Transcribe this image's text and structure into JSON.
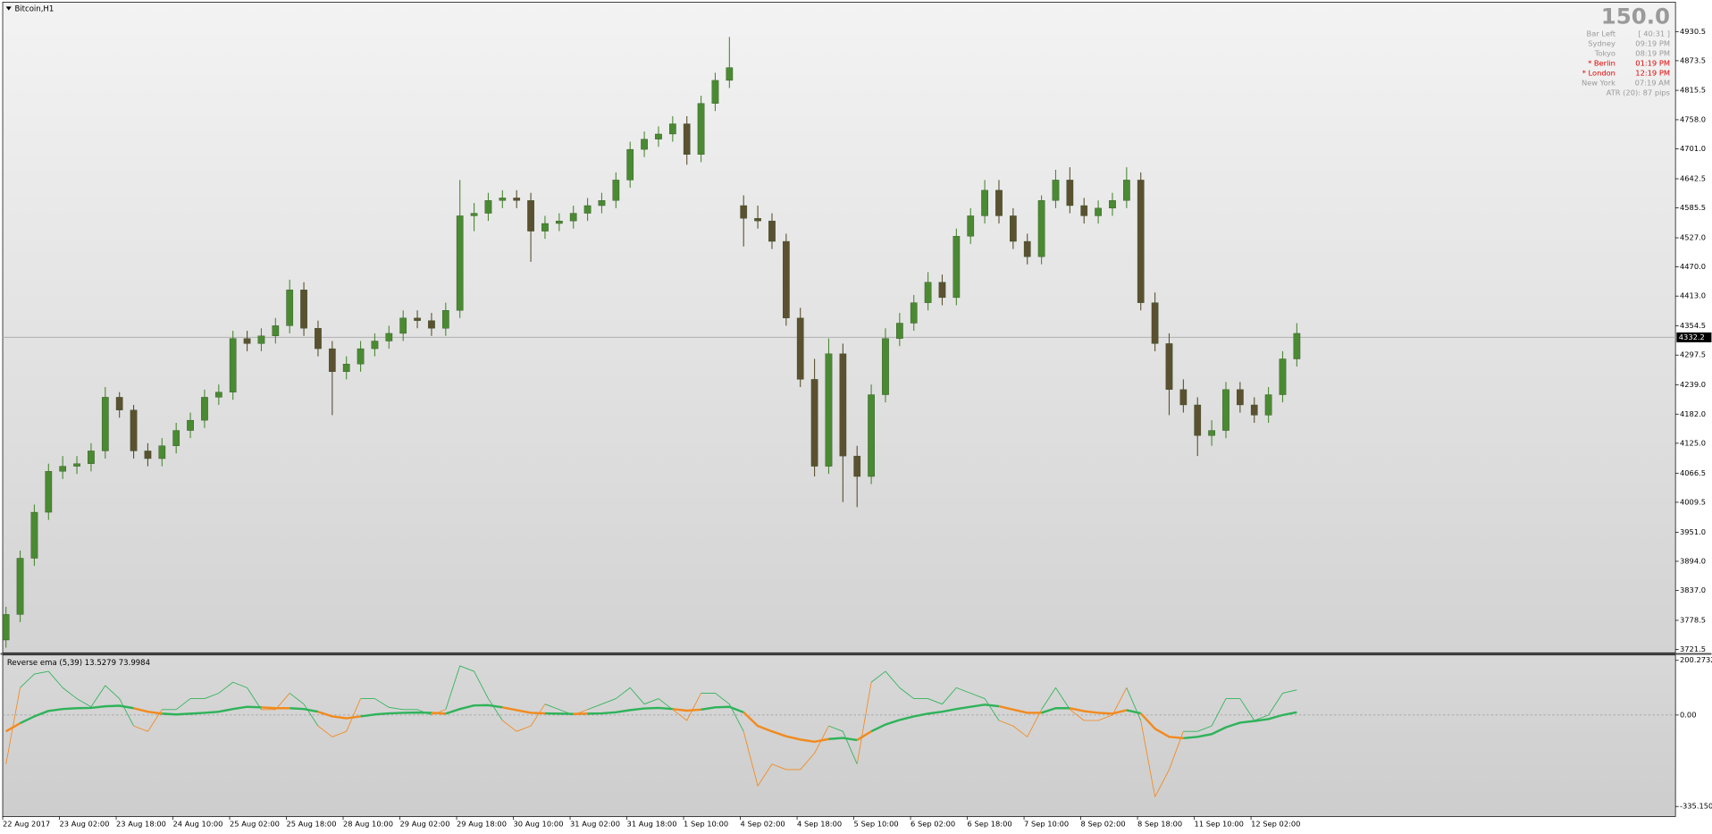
{
  "chart_data": {
    "type": "candlestick",
    "title": "Bitcoin,H1",
    "categories": [
      "22 Aug 2017",
      null,
      null,
      null,
      "23 Aug 02:00",
      null,
      null,
      null,
      "23 Aug 18:00",
      null,
      null,
      null,
      "24 Aug 10:00",
      null,
      null,
      null,
      "25 Aug 02:00",
      null,
      null,
      null,
      "25 Aug 18:00",
      null,
      null,
      null,
      "28 Aug 10:00",
      null,
      null,
      null,
      "29 Aug 02:00",
      null,
      null,
      null,
      "29 Aug 18:00",
      null,
      null,
      null,
      "30 Aug 10:00",
      null,
      null,
      null,
      "31 Aug 02:00",
      null,
      null,
      null,
      "31 Aug 18:00",
      null,
      null,
      null,
      "1 Sep 10:00",
      null,
      null,
      null,
      "4 Sep 02:00",
      null,
      null,
      null,
      "4 Sep 18:00",
      null,
      null,
      null,
      "5 Sep 10:00",
      null,
      null,
      null,
      "6 Sep 02:00",
      null,
      null,
      null,
      "6 Sep 18:00",
      null,
      null,
      null,
      "7 Sep 10:00",
      null,
      null,
      null,
      "8 Sep 02:00",
      null,
      null,
      null,
      "8 Sep 18:00",
      null,
      null,
      null,
      "11 Sep 10:00",
      null,
      null,
      null,
      "12 Sep 02:00",
      null,
      null,
      null
    ],
    "open": [
      3740,
      3790,
      3900,
      3990,
      4070,
      4080,
      4085,
      4110,
      4215,
      4190,
      4110,
      4095,
      4120,
      4150,
      4170,
      4215,
      4225,
      4330,
      4320,
      4335,
      4355,
      4425,
      4350,
      4310,
      4265,
      4280,
      4310,
      4325,
      4340,
      4370,
      4365,
      4350,
      4385,
      4570,
      4575,
      4600,
      4605,
      4600,
      4540,
      4555,
      4560,
      4575,
      4590,
      4600,
      4640,
      4700,
      4720,
      4730,
      4750,
      4690,
      4790,
      4835,
      4590,
      4565,
      4560,
      4520,
      4370,
      4250,
      4080,
      4300,
      4100,
      4060,
      4220,
      4330,
      4360,
      4400,
      4440,
      4410,
      4530,
      4570,
      4620,
      4570,
      4520,
      4490,
      4600,
      4640,
      4590,
      4570,
      4585,
      4600,
      4640,
      4400,
      4320,
      4230,
      4200,
      4140,
      4150,
      4230,
      4200,
      4180,
      4220,
      4290
    ],
    "high": [
      3805,
      3915,
      4005,
      4085,
      4100,
      4100,
      4125,
      4235,
      4225,
      4200,
      4125,
      4135,
      4165,
      4185,
      4230,
      4240,
      4345,
      4345,
      4350,
      4370,
      4445,
      4440,
      4365,
      4325,
      4295,
      4325,
      4340,
      4355,
      4385,
      4385,
      4380,
      4400,
      4640,
      4595,
      4615,
      4620,
      4620,
      4615,
      4570,
      4575,
      4590,
      4605,
      4615,
      4655,
      4715,
      4735,
      4745,
      4765,
      4765,
      4805,
      4850,
      4920,
      4610,
      4590,
      4575,
      4535,
      4390,
      4290,
      4330,
      4320,
      4120,
      4240,
      4350,
      4380,
      4415,
      4460,
      4455,
      4545,
      4585,
      4640,
      4640,
      4585,
      4535,
      4610,
      4660,
      4665,
      4605,
      4600,
      4615,
      4665,
      4655,
      4420,
      4340,
      4250,
      4215,
      4170,
      4245,
      4245,
      4215,
      4235,
      4305,
      4360
    ],
    "low": [
      3725,
      3775,
      3885,
      3975,
      4055,
      4065,
      4070,
      4095,
      4175,
      4095,
      4080,
      4080,
      4105,
      4135,
      4155,
      4200,
      4210,
      4305,
      4305,
      4320,
      4340,
      4335,
      4295,
      4180,
      4250,
      4265,
      4295,
      4310,
      4325,
      4350,
      4335,
      4335,
      4370,
      4540,
      4560,
      4585,
      4585,
      4480,
      4525,
      4540,
      4545,
      4560,
      4575,
      4585,
      4625,
      4685,
      4705,
      4715,
      4670,
      4675,
      4775,
      4820,
      4510,
      4545,
      4505,
      4355,
      4235,
      4060,
      4065,
      4010,
      4000,
      4045,
      4205,
      4315,
      4345,
      4385,
      4395,
      4395,
      4515,
      4555,
      4555,
      4505,
      4475,
      4475,
      4585,
      4575,
      4555,
      4555,
      4570,
      4585,
      4385,
      4305,
      4180,
      4185,
      4100,
      4120,
      4135,
      4185,
      4165,
      4165,
      4205,
      4275
    ],
    "close": [
      3790,
      3900,
      3990,
      4070,
      4080,
      4085,
      4110,
      4215,
      4190,
      4110,
      4095,
      4120,
      4150,
      4170,
      4215,
      4225,
      4330,
      4320,
      4335,
      4355,
      4425,
      4350,
      4310,
      4265,
      4280,
      4310,
      4325,
      4340,
      4370,
      4365,
      4350,
      4385,
      4570,
      4575,
      4600,
      4605,
      4600,
      4540,
      4555,
      4560,
      4575,
      4590,
      4600,
      4640,
      4700,
      4720,
      4730,
      4750,
      4690,
      4790,
      4835,
      4860,
      4565,
      4560,
      4520,
      4370,
      4250,
      4080,
      4300,
      4100,
      4060,
      4220,
      4330,
      4360,
      4400,
      4440,
      4410,
      4530,
      4570,
      4620,
      4570,
      4520,
      4490,
      4600,
      4640,
      4590,
      4570,
      4585,
      4600,
      4640,
      4400,
      4320,
      4230,
      4200,
      4140,
      4150,
      4230,
      4200,
      4180,
      4220,
      4290,
      4340
    ],
    "up_color": "#4a8a32",
    "down_color": "#5b5130",
    "ylim": [
      3715,
      4988
    ],
    "yticks": [
      4930.5,
      4873.5,
      4815.5,
      {
        "value": 4758,
        "label": "4758.0"
      },
      {
        "value": 4701,
        "label": "4701.0"
      },
      4642.5,
      4585.5,
      {
        "value": 4527,
        "label": "4527.0"
      },
      {
        "value": 4470,
        "label": "4470.0"
      },
      {
        "value": 4413,
        "label": "4413.0"
      },
      4354.5,
      4297.5,
      {
        "value": 4239,
        "label": "4239.0"
      },
      {
        "value": 4182,
        "label": "4182.0"
      },
      {
        "value": 4125,
        "label": "4125.0"
      },
      4066.5,
      4009.5,
      {
        "value": 3951,
        "label": "3951.0"
      },
      {
        "value": 3894,
        "label": "3894.0"
      },
      {
        "value": 3837,
        "label": "3837.0"
      },
      3778.5,
      3721.5
    ],
    "bid": 4332.2,
    "bid_color": "#b0b0b0",
    "indicator": {
      "title": "Reverse ema (5,39) 13.5279 73.9984",
      "fast": [
        -180,
        100,
        150,
        160,
        100,
        60,
        30,
        108,
        60,
        -40,
        -60,
        20,
        20,
        60,
        60,
        80,
        120,
        100,
        20,
        20,
        80,
        40,
        -40,
        -80,
        -60,
        60,
        60,
        28,
        20,
        20,
        0,
        20,
        180,
        160,
        60,
        -20,
        -60,
        -40,
        40,
        20,
        0,
        20,
        40,
        60,
        100,
        40,
        60,
        20,
        -20,
        80,
        80,
        40,
        -60,
        -260,
        -180,
        -200,
        -200,
        -140,
        -40,
        -60,
        -180,
        120,
        160,
        100,
        60,
        60,
        40,
        100,
        80,
        60,
        -20,
        -40,
        -80,
        20,
        100,
        20,
        -20,
        -20,
        0,
        100,
        -20,
        -300,
        -200,
        -60,
        -60,
        -40,
        60,
        60,
        -20,
        0,
        80,
        92
      ],
      "slow": [
        -60,
        -30,
        -5,
        15,
        22,
        25,
        26,
        32,
        34,
        25,
        12,
        5,
        2,
        5,
        8,
        12,
        22,
        30,
        28,
        25,
        25,
        22,
        12,
        -5,
        -12,
        -5,
        2,
        6,
        8,
        9,
        8,
        5,
        22,
        35,
        36,
        28,
        18,
        8,
        6,
        5,
        4,
        5,
        6,
        10,
        18,
        24,
        26,
        22,
        16,
        20,
        28,
        30,
        10,
        -40,
        -60,
        -78,
        -90,
        -98,
        -88,
        -84,
        -92,
        -60,
        -35,
        -18,
        -5,
        5,
        12,
        22,
        30,
        38,
        32,
        20,
        8,
        8,
        25,
        25,
        14,
        8,
        5,
        18,
        6,
        -50,
        -80,
        -85,
        -80,
        -70,
        -45,
        -28,
        -22,
        -15,
        0,
        10
      ],
      "up_color": "#2fb35a",
      "down_color": "#f28a1e",
      "ylim": [
        -372,
        220
      ],
      "yticks": [
        200.2732,
        {
          "value": 0,
          "label": "0.00"
        },
        {
          "value": -335.15,
          "label": "-335.150"
        }
      ]
    },
    "info": {
      "big": "150.0",
      "rows": [
        {
          "label": "Bar Left",
          "value": "[ 40:31 ]",
          "color": "#9a9a9a"
        },
        {
          "label": "Sydney",
          "value": "09:19 PM",
          "color": "#9a9a9a"
        },
        {
          "label": "Tokyo",
          "value": "08:19 PM",
          "color": "#9a9a9a"
        },
        {
          "label": "* Berlin",
          "value": "01:19 PM",
          "color": "#e00000"
        },
        {
          "label": "* London",
          "value": "12:19 PM",
          "color": "#e00000"
        },
        {
          "label": "New York",
          "value": "07:19 AM",
          "color": "#9a9a9a"
        }
      ],
      "atr": "ATR (20): 87 pips"
    }
  }
}
